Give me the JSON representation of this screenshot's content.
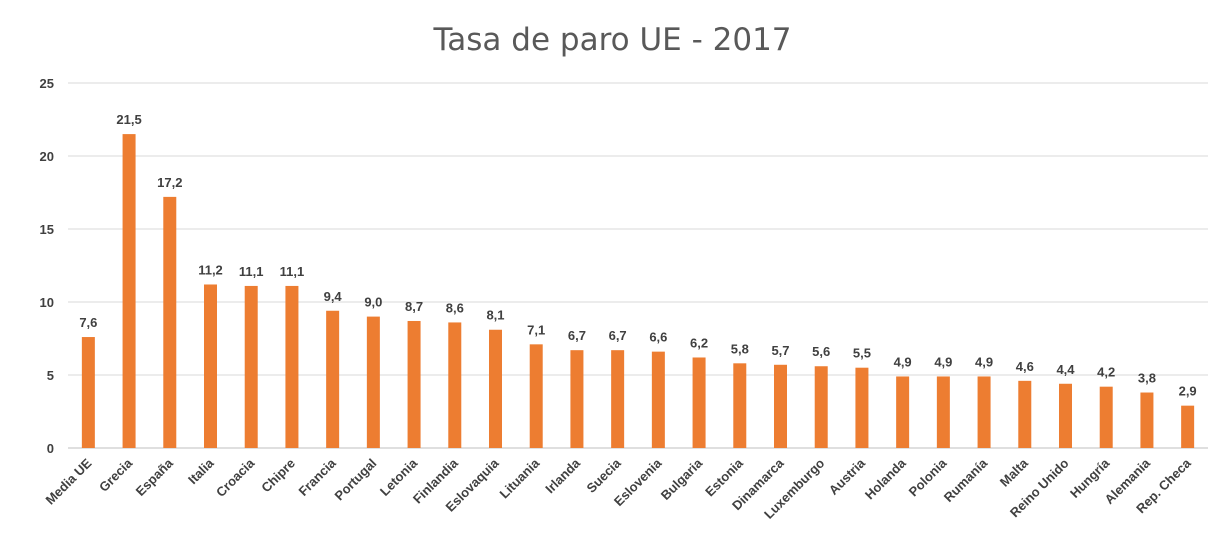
{
  "chart_data": {
    "type": "bar",
    "title": "Tasa de paro UE - 2017",
    "xlabel": "",
    "ylabel": "",
    "ylim": [
      0,
      25
    ],
    "yticks": [
      0,
      5,
      10,
      15,
      20,
      25
    ],
    "grid": true,
    "legend": "none",
    "bar_color": "#ED7D31",
    "categories": [
      "Media UE",
      "Grecia",
      "España",
      "Italia",
      "Croacia",
      "Chipre",
      "Francia",
      "Portugal",
      "Letonia",
      "Finlandia",
      "Eslovaquia",
      "Lituania",
      "Irlanda",
      "Suecia",
      "Eslovenia",
      "Bulgaria",
      "Estonia",
      "Dinamarca",
      "Luxemburgo",
      "Austria",
      "Holanda",
      "Polonia",
      "Rumanía",
      "Malta",
      "Reino Unido",
      "Hungría",
      "Alemania",
      "Rep. Checa"
    ],
    "values": [
      7.6,
      21.5,
      17.2,
      11.2,
      11.1,
      11.1,
      9.4,
      9.0,
      8.7,
      8.6,
      8.1,
      7.1,
      6.7,
      6.7,
      6.6,
      6.2,
      5.8,
      5.7,
      5.6,
      5.5,
      4.9,
      4.9,
      4.9,
      4.6,
      4.4,
      4.2,
      3.8,
      2.9
    ],
    "data_labels": [
      "7,6",
      "21,5",
      "17,2",
      "11,2",
      "11,1",
      "11,1",
      "9,4",
      "9,0",
      "8,7",
      "8,6",
      "8,1",
      "7,1",
      "6,7",
      "6,7",
      "6,6",
      "6,2",
      "5,8",
      "5,7",
      "5,6",
      "5,5",
      "4,9",
      "4,9",
      "4,9",
      "4,6",
      "4,4",
      "4,2",
      "3,8",
      "2,9"
    ]
  }
}
